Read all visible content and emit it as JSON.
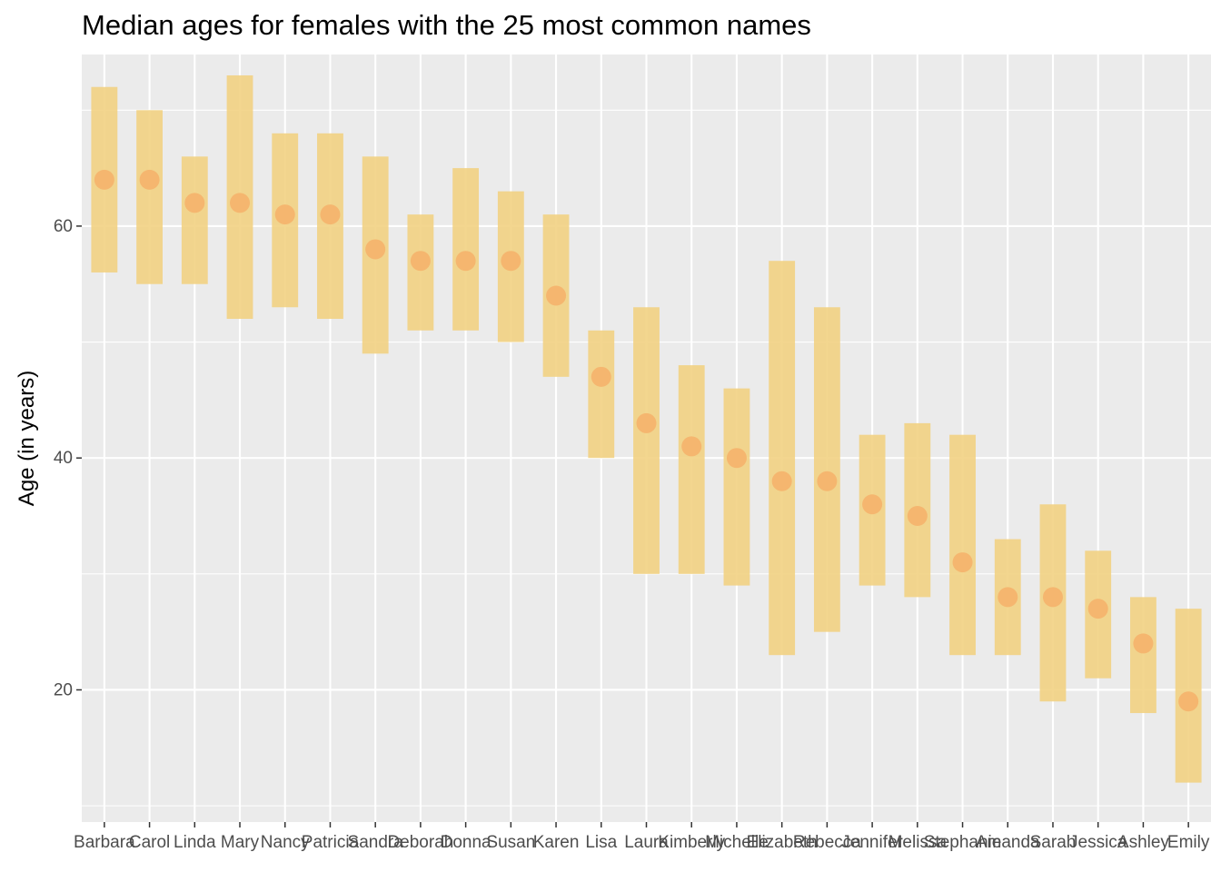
{
  "chart_data": {
    "type": "scatter",
    "title": "Median ages for females with the 25 most common names",
    "xlabel": "",
    "ylabel": "Age (in years)",
    "ylim": [
      8.6,
      74.8
    ],
    "y_ticks": [
      20,
      40,
      60
    ],
    "grid": true,
    "colors": {
      "panel": "#ebebeb",
      "grid": "#ffffff",
      "bar": "#f2d283",
      "point": "#f5b26b",
      "tick_text": "#4d4d4d"
    },
    "categories": [
      "Barbara",
      "Carol",
      "Linda",
      "Mary",
      "Nancy",
      "Patricia",
      "Sandra",
      "Deborah",
      "Donna",
      "Susan",
      "Karen",
      "Lisa",
      "Laura",
      "Kimberly",
      "Michelle",
      "Elizabeth",
      "Rebecca",
      "Jennifer",
      "Melissa",
      "Stephanie",
      "Amanda",
      "Sarah",
      "Jessica",
      "Ashley",
      "Emily"
    ],
    "series": [
      {
        "name": "",
        "kind": "range",
        "low": [
          56,
          55,
          55,
          52,
          53,
          52,
          49,
          51,
          51,
          50,
          47,
          40,
          30,
          30,
          29,
          23,
          25,
          29,
          28,
          23,
          23,
          19,
          21,
          18,
          12
        ],
        "high": [
          72,
          70,
          66,
          73,
          68,
          68,
          66,
          61,
          65,
          63,
          61,
          51,
          53,
          48,
          46,
          57,
          53,
          42,
          43,
          42,
          33,
          36,
          32,
          28,
          27
        ]
      },
      {
        "name": "",
        "kind": "point",
        "values": [
          64,
          64,
          62,
          62,
          61,
          61,
          58,
          57,
          57,
          57,
          54,
          47,
          43,
          41,
          40,
          38,
          38,
          36,
          35,
          31,
          28,
          28,
          27,
          24,
          19
        ]
      }
    ]
  }
}
